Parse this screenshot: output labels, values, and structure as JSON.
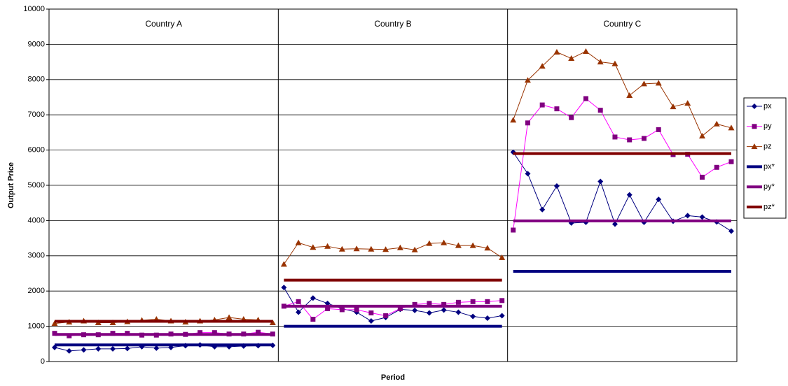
{
  "chart_data": {
    "type": "line",
    "y_label": "Output Price",
    "x_label": "Period",
    "ylim": [
      0,
      10000
    ],
    "yticks": [
      0,
      1000,
      2000,
      3000,
      4000,
      5000,
      6000,
      7000,
      8000,
      9000,
      10000
    ],
    "grid": true,
    "legend": "right",
    "series": [
      {
        "name": "px",
        "color": "#000080",
        "marker": "diamond",
        "width": 1
      },
      {
        "name": "py",
        "color": "#ff00ff",
        "marker": "square",
        "marker_color": "#800080",
        "width": 1
      },
      {
        "name": "pz",
        "color": "#993300",
        "marker": "triangle",
        "width": 1
      },
      {
        "name": "px*",
        "color": "#000080",
        "width": 4
      },
      {
        "name": "py*",
        "color": "#800080",
        "width": 4
      },
      {
        "name": "pz*",
        "color": "#800000",
        "width": 4
      }
    ],
    "panels": [
      {
        "label": "Country A",
        "series": [
          {
            "values": [
              400,
              300,
              330,
              360,
              360,
              370,
              420,
              380,
              400,
              450,
              470,
              420,
              420,
              440,
              450,
              460
            ]
          },
          {
            "values": [
              800,
              730,
              760,
              760,
              800,
              800,
              750,
              750,
              780,
              770,
              820,
              820,
              780,
              780,
              830,
              780
            ]
          },
          {
            "values": [
              1080,
              1120,
              1150,
              1100,
              1100,
              1130,
              1170,
              1200,
              1150,
              1120,
              1150,
              1180,
              1250,
              1200,
              1180,
              1100
            ]
          },
          {
            "values": [
              470,
              470,
              470,
              470,
              470,
              470,
              470,
              470,
              470,
              470,
              470,
              470,
              470,
              470,
              470,
              470
            ]
          },
          {
            "values": [
              770,
              770,
              770,
              770,
              770,
              770,
              770,
              770,
              770,
              770,
              770,
              770,
              770,
              770,
              770,
              770
            ]
          },
          {
            "values": [
              1140,
              1140,
              1140,
              1140,
              1140,
              1140,
              1140,
              1140,
              1140,
              1140,
              1140,
              1140,
              1140,
              1140,
              1140,
              1140
            ]
          }
        ]
      },
      {
        "label": "Country B",
        "series": [
          {
            "values": [
              2100,
              1400,
              1800,
              1650,
              1500,
              1400,
              1150,
              1250,
              1480,
              1450,
              1380,
              1460,
              1400,
              1280,
              1230,
              1300
            ]
          },
          {
            "values": [
              1570,
              1700,
              1200,
              1500,
              1470,
              1470,
              1380,
              1300,
              1500,
              1620,
              1650,
              1620,
              1680,
              1700,
              1700,
              1730
            ]
          },
          {
            "values": [
              2760,
              3370,
              3240,
              3270,
              3190,
              3200,
              3190,
              3180,
              3230,
              3170,
              3350,
              3370,
              3290,
              3290,
              3220,
              2950
            ]
          },
          {
            "values": [
              1000,
              1000,
              1000,
              1000,
              1000,
              1000,
              1000,
              1000,
              1000,
              1000,
              1000,
              1000,
              1000,
              1000,
              1000,
              1000
            ]
          },
          {
            "values": [
              1570,
              1570,
              1570,
              1570,
              1570,
              1570,
              1570,
              1570,
              1570,
              1570,
              1570,
              1570,
              1570,
              1570,
              1570,
              1570
            ]
          },
          {
            "values": [
              2310,
              2310,
              2310,
              2310,
              2310,
              2310,
              2310,
              2310,
              2310,
              2310,
              2310,
              2310,
              2310,
              2310,
              2310,
              2310
            ]
          }
        ]
      },
      {
        "label": "Country C",
        "series": [
          {
            "values": [
              5940,
              5330,
              4310,
              4980,
              3930,
              3950,
              5110,
              3900,
              4730,
              3950,
              4600,
              3980,
              4140,
              4100,
              3960,
              3700
            ]
          },
          {
            "values": [
              3730,
              6770,
              7280,
              7170,
              6920,
              7460,
              7130,
              6370,
              6290,
              6330,
              6580,
              5870,
              5880,
              5230,
              5510,
              5670
            ]
          },
          {
            "values": [
              6850,
              7980,
              8380,
              8780,
              8600,
              8800,
              8500,
              8450,
              7550,
              7880,
              7900,
              7230,
              7330,
              6400,
              6740,
              6630
            ]
          },
          {
            "values": [
              2560,
              2560,
              2560,
              2560,
              2560,
              2560,
              2560,
              2560,
              2560,
              2560,
              2560,
              2560,
              2560,
              2560,
              2560,
              2560
            ]
          },
          {
            "values": [
              3990,
              3990,
              3990,
              3990,
              3990,
              3990,
              3990,
              3990,
              3990,
              3990,
              3990,
              3990,
              3990,
              3990,
              3990,
              3990
            ]
          },
          {
            "values": [
              5900,
              5900,
              5900,
              5900,
              5900,
              5900,
              5900,
              5900,
              5900,
              5900,
              5900,
              5900,
              5900,
              5900,
              5900,
              5900
            ]
          }
        ]
      }
    ]
  }
}
